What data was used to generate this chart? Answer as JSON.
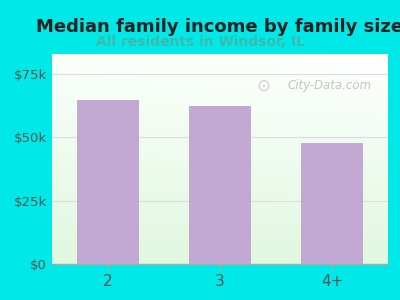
{
  "title": "Median family income by family size",
  "subtitle": "All residents in Windsor, IL",
  "categories": [
    "2",
    "3",
    "4+"
  ],
  "values": [
    65000,
    62500,
    48000
  ],
  "bar_color": "#c4a8d4",
  "bar_width": 0.55,
  "ylim": [
    0,
    83000
  ],
  "yticks": [
    0,
    25000,
    50000,
    75000
  ],
  "ytick_labels": [
    "$0",
    "$25k",
    "$50k",
    "$75k"
  ],
  "title_fontsize": 13,
  "subtitle_fontsize": 10,
  "subtitle_color": "#3dbaaa",
  "title_color": "#222222",
  "outer_bg": "#00e8e8",
  "tick_label_color": "#555555",
  "watermark_text": "City-Data.com",
  "watermark_color": "#bbbbbb",
  "grid_color": "#dddddd",
  "bottom_spine_color": "#aaaaaa",
  "xtick_color": "#aaaaaa"
}
